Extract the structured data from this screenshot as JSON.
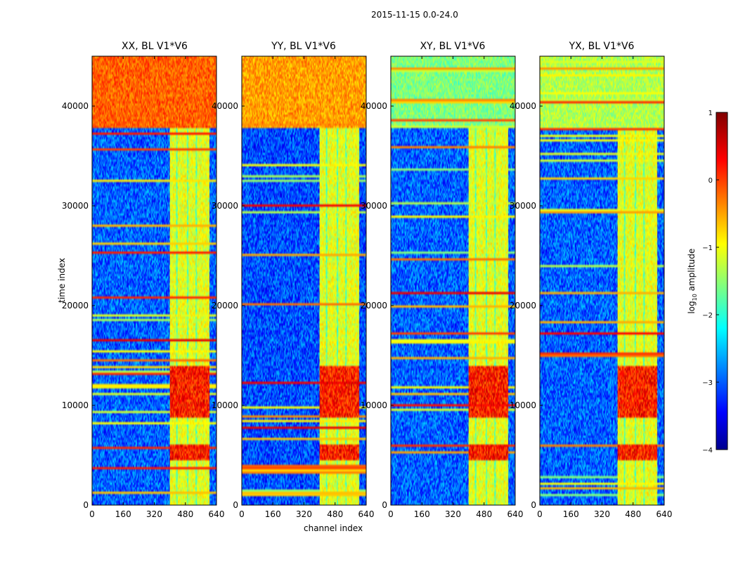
{
  "figure": {
    "suptitle": "2015-11-15 0.0-24.0",
    "xlabel": "channel index",
    "ylabel": "time index"
  },
  "chart_data": {
    "type": "heatmap",
    "colormap": "jet",
    "x_range": [
      0,
      640
    ],
    "y_range": [
      0,
      45000
    ],
    "x_ticks": [
      0,
      160,
      320,
      480,
      640
    ],
    "x_tick_labels": [
      "0",
      "160",
      "320",
      "480",
      "640"
    ],
    "y_ticks": [
      0,
      10000,
      20000,
      30000,
      40000
    ],
    "y_tick_labels": [
      "0",
      "10000",
      "20000",
      "30000",
      "40000"
    ],
    "panels": [
      {
        "title": "XX, BL V1*V6",
        "top_band_level": 0.78,
        "noise_level": 0.22
      },
      {
        "title": "YY, BL V1*V6",
        "top_band_level": 0.72,
        "noise_level": 0.2
      },
      {
        "title": "XY, BL V1*V6",
        "top_band_level": 0.5,
        "noise_level": 0.22
      },
      {
        "title": "YX, BL V1*V6",
        "top_band_level": 0.55,
        "noise_level": 0.22
      }
    ],
    "colorbar": {
      "label_prefix": "log",
      "label_sub": "10",
      "label_suffix": " amplitude",
      "range": [
        -4,
        1
      ],
      "ticks": [
        1,
        0,
        -1,
        -2,
        -3,
        -4
      ],
      "tick_labels": [
        "1",
        "0",
        "−1",
        "−2",
        "−3",
        "−4"
      ]
    }
  }
}
